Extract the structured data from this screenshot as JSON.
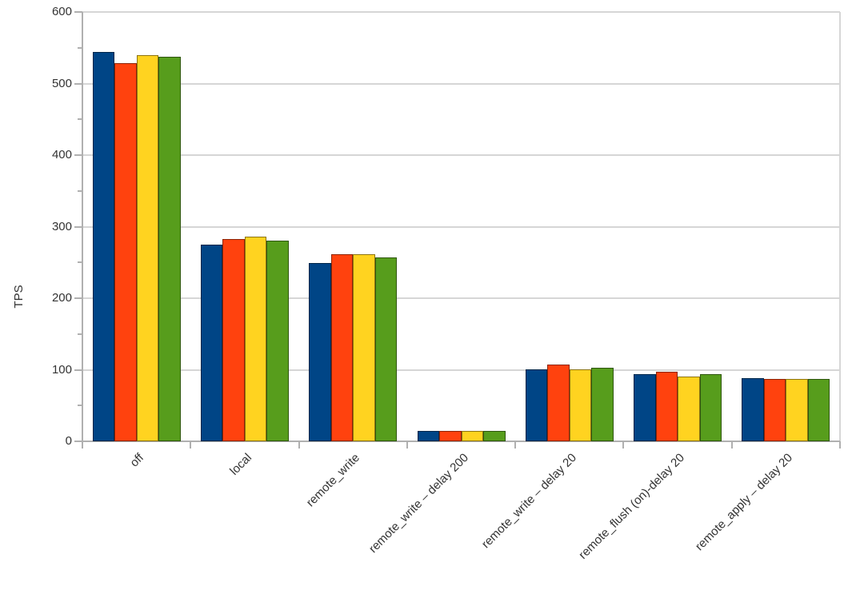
{
  "chart_data": {
    "type": "bar",
    "title": "",
    "xlabel": "",
    "ylabel": "TPS",
    "ylim": [
      0,
      600
    ],
    "yticks": [
      0,
      100,
      200,
      300,
      400,
      500,
      600
    ],
    "minor_tick_interval": 50,
    "grid": true,
    "legend_position": "none",
    "categories": [
      "off",
      "local",
      "remote_write",
      "remote_write – delay 200",
      "remote_write – delay 20",
      "remote_flush (on)-delay 20",
      "remote_apply – delay 20"
    ],
    "series": [
      {
        "name": "series-1-blue",
        "color": "#004586",
        "values": [
          544,
          275,
          249,
          15,
          101,
          94,
          88
        ]
      },
      {
        "name": "series-2-orange",
        "color": "#FF420E",
        "values": [
          528,
          283,
          262,
          15,
          107,
          97,
          87
        ]
      },
      {
        "name": "series-3-yellow",
        "color": "#FFD320",
        "values": [
          540,
          286,
          261,
          15,
          101,
          90,
          87
        ]
      },
      {
        "name": "series-4-green",
        "color": "#579D1C",
        "values": [
          537,
          281,
          257,
          15,
          103,
          94,
          87
        ]
      }
    ]
  },
  "colors": {
    "background": "#ffffff",
    "grid": "#d6d6d6",
    "axis": "#b0b0b0",
    "text": "#333333"
  }
}
